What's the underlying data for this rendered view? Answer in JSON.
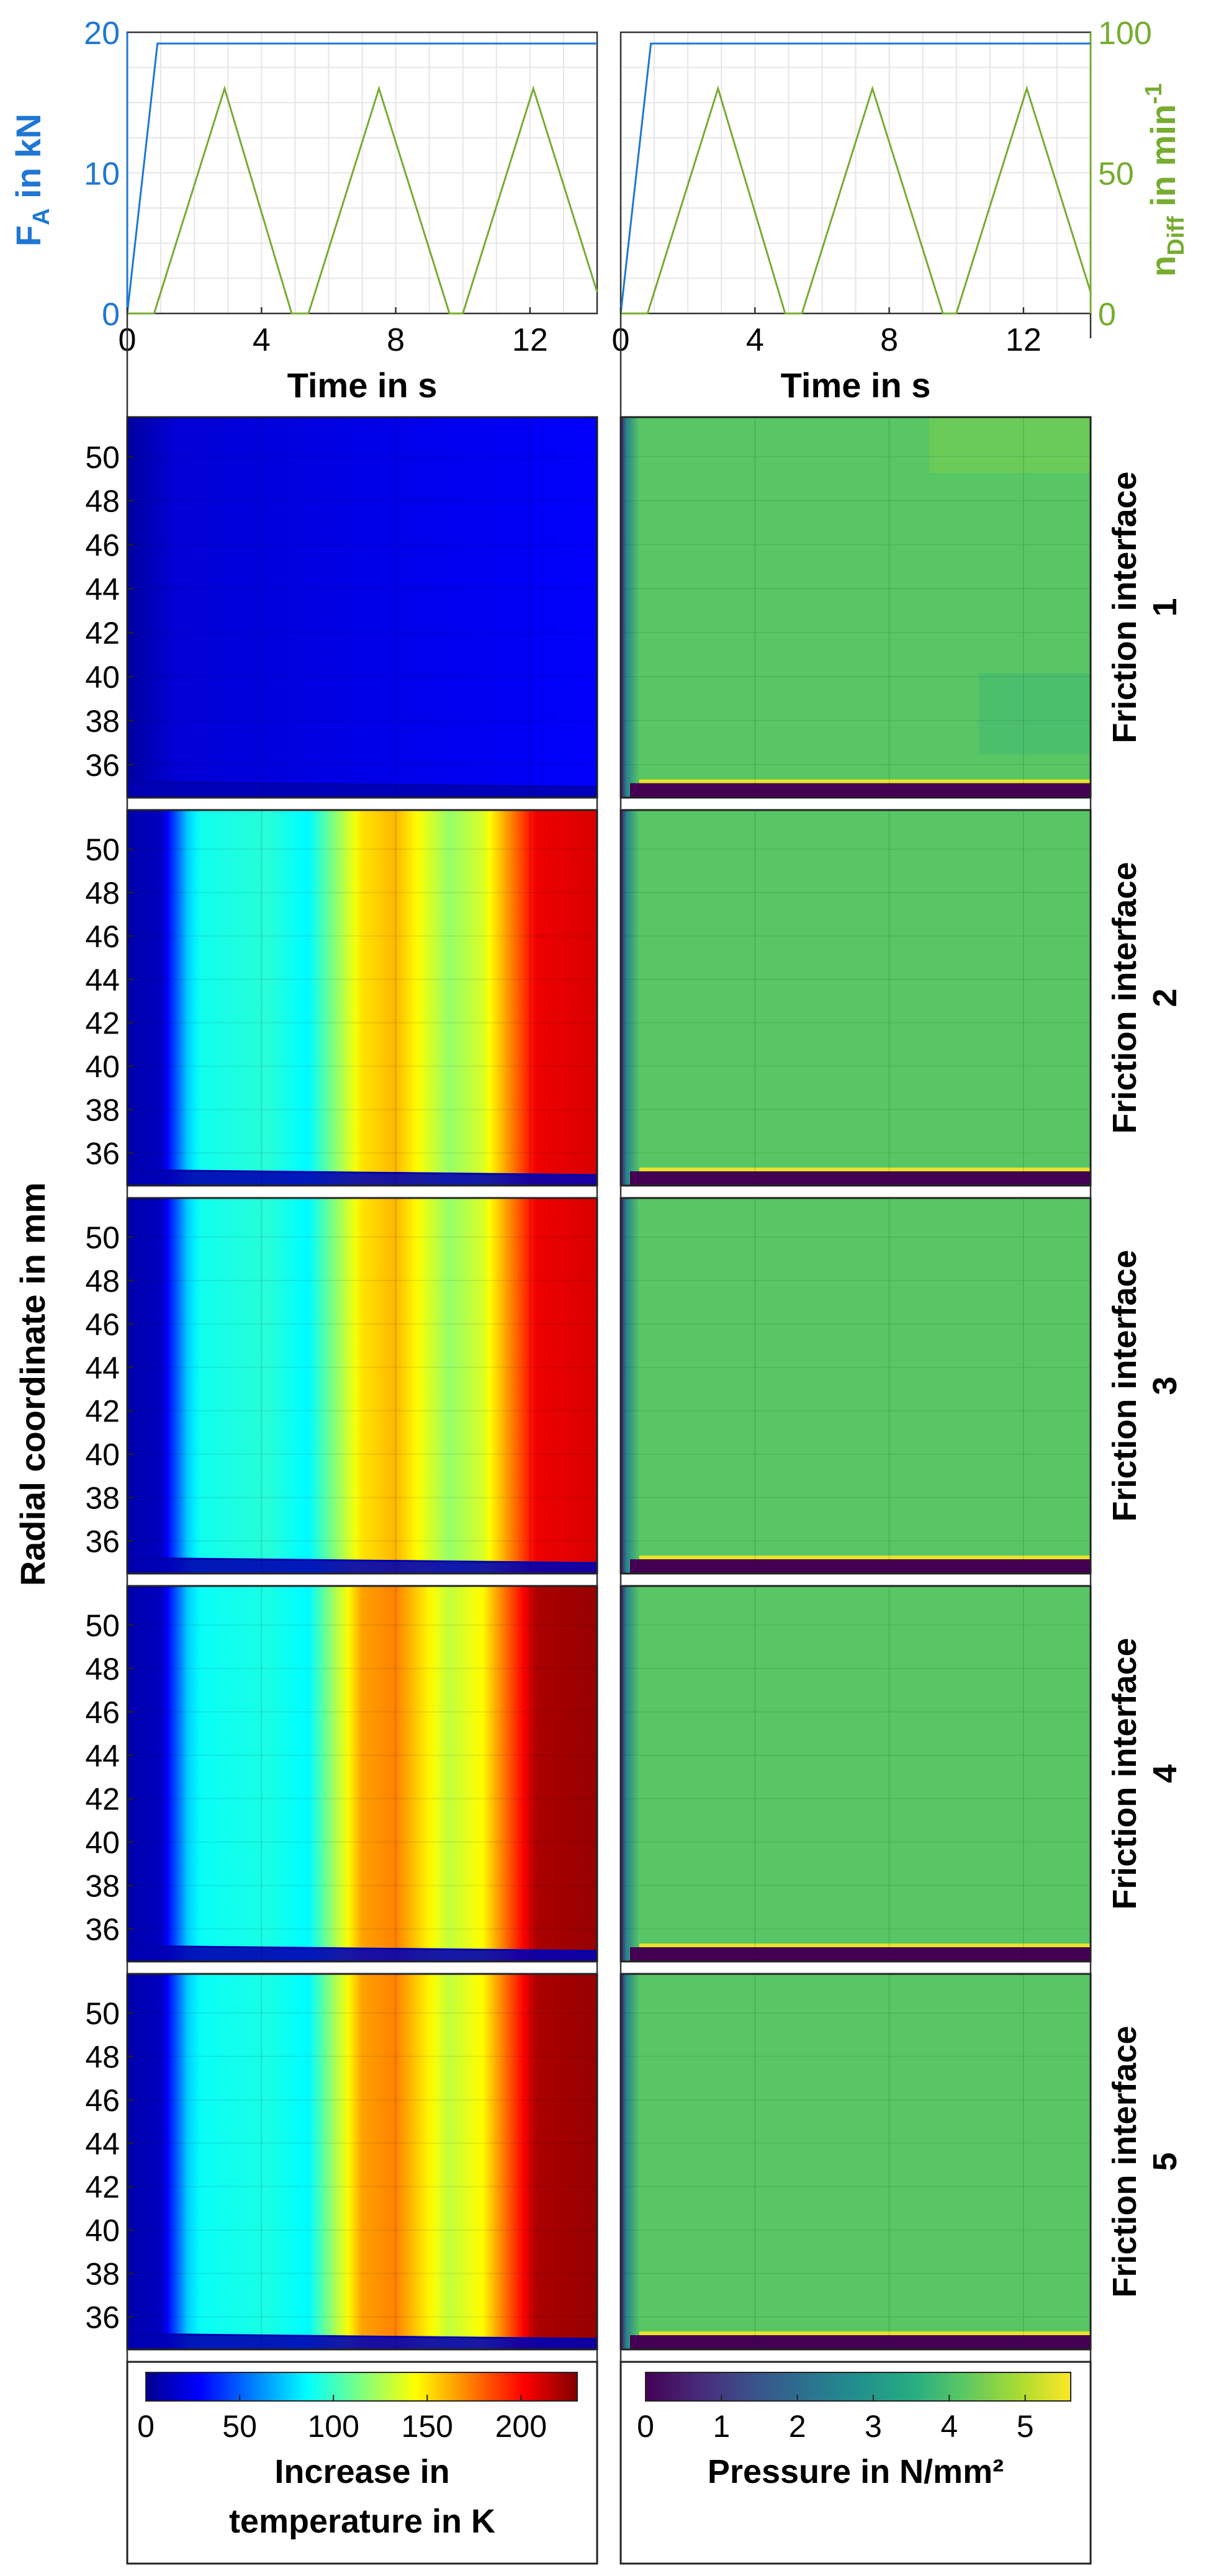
{
  "chart_data": {
    "type": "line+heatmap",
    "top": {
      "xlabel": "Time in s",
      "xticks": [
        0,
        4,
        8,
        12
      ],
      "xlim": [
        0,
        14
      ],
      "left_axis": {
        "label_main": "F",
        "label_sub": "A",
        "label_rest": " in kN",
        "ticks": [
          0,
          10,
          20
        ],
        "ylim": [
          0,
          20
        ],
        "color": "#1f77d4"
      },
      "right_axis": {
        "label_main": "n",
        "label_sub": "Diff",
        "label_rest": " in min",
        "label_sup": "-1",
        "ticks": [
          0,
          50,
          100
        ],
        "ylim": [
          0,
          100
        ],
        "color": "#77ac30"
      },
      "series": [
        {
          "name": "F_A",
          "axis": "left",
          "color": "#1f77d4",
          "x": [
            0,
            0.9,
            14
          ],
          "y": [
            0,
            19.2,
            19.2
          ]
        },
        {
          "name": "n_Diff",
          "axis": "right",
          "color": "#77ac30",
          "x": [
            0,
            0.8,
            2.9,
            4.9,
            5.4,
            7.5,
            9.6,
            10.0,
            12.1,
            14.2
          ],
          "y": [
            0,
            0,
            80,
            0,
            0,
            80,
            0,
            0,
            80,
            0
          ]
        }
      ]
    },
    "heatmaps": {
      "ylabel": "Radial coordinate in mm",
      "yticks": [
        36,
        38,
        40,
        42,
        44,
        46,
        48,
        50
      ],
      "ylim": [
        34.5,
        51.8
      ],
      "xlim": [
        0,
        14
      ],
      "row_label_prefix": "Friction interface",
      "rows": [
        "1",
        "2",
        "3",
        "4",
        "5"
      ],
      "temperature": {
        "colormap": "jet",
        "range": [
          0,
          230
        ],
        "colorbar_ticks": [
          0,
          50,
          100,
          150,
          200
        ],
        "colorbar_label_line1": "Increase in",
        "colorbar_label_line2": "temperature in K",
        "time_profiles": [
          {
            "t": [
              0,
              1.5,
              14
            ],
            "v": [
              5,
              18,
              28
            ]
          },
          {
            "t": [
              0,
              1.0,
              1.8,
              2.2,
              4.2,
              5.4,
              7.0,
              8.0,
              9.6,
              10.6,
              12.2,
              14
            ],
            "v": [
              8,
              12,
              75,
              90,
              95,
              85,
              150,
              160,
              120,
              135,
              205,
              210
            ]
          },
          {
            "t": [
              0,
              1.0,
              1.8,
              2.2,
              4.2,
              5.4,
              7.0,
              8.0,
              9.6,
              10.6,
              12.2,
              14
            ],
            "v": [
              8,
              12,
              75,
              90,
              95,
              85,
              150,
              160,
              120,
              135,
              205,
              210
            ]
          },
          {
            "t": [
              0,
              1.0,
              1.8,
              2.2,
              4.2,
              5.4,
              7.0,
              8.0,
              9.6,
              10.6,
              12.2,
              14
            ],
            "v": [
              8,
              12,
              75,
              88,
              92,
              85,
              165,
              172,
              130,
              145,
              220,
              225
            ]
          },
          {
            "t": [
              0,
              1.0,
              1.8,
              2.2,
              4.2,
              5.4,
              7.0,
              8.0,
              9.6,
              10.6,
              12.2,
              14
            ],
            "v": [
              8,
              12,
              75,
              88,
              92,
              85,
              165,
              172,
              130,
              145,
              220,
              225
            ]
          }
        ]
      },
      "pressure": {
        "colormap": "viridis",
        "range": [
          0,
          5.6
        ],
        "field_value": 4.15,
        "colorbar_ticks": [
          0,
          1,
          2,
          3,
          4,
          5
        ],
        "colorbar_label": "Pressure in N/mm²"
      }
    }
  }
}
